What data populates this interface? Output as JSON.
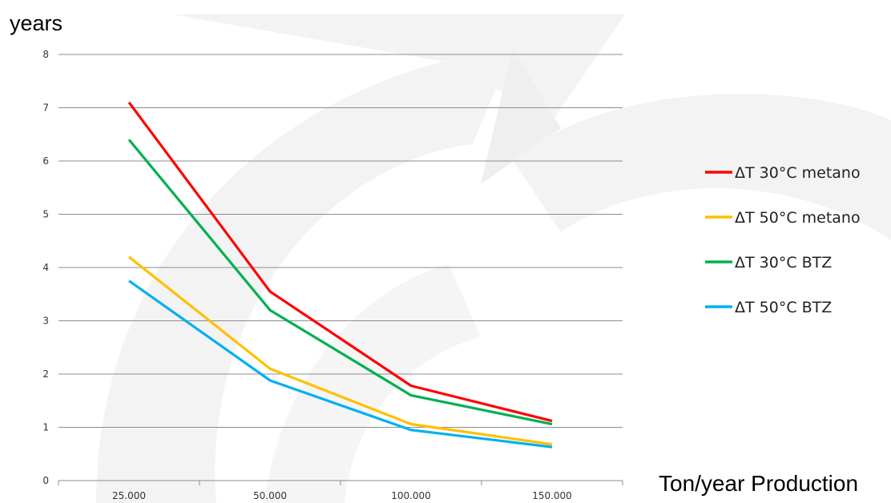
{
  "chart_data": {
    "type": "line",
    "ylabel": "years",
    "xlabel": "Ton/year Production",
    "categories": [
      "25.000",
      "50.000",
      "100.000",
      "150.000"
    ],
    "ylim": [
      0,
      8
    ],
    "yticks": [
      0,
      1,
      2,
      3,
      4,
      5,
      6,
      7,
      8
    ],
    "grid": true,
    "legend_position": "right",
    "series": [
      {
        "name": "ΔT 30°C metano",
        "color": "#ff0000",
        "values": [
          7.1,
          3.55,
          1.78,
          1.12
        ]
      },
      {
        "name": "ΔT 50°C metano",
        "color": "#ffc000",
        "values": [
          4.2,
          2.1,
          1.06,
          0.68
        ]
      },
      {
        "name": "ΔT 30°C BTZ",
        "color": "#00b050",
        "values": [
          6.4,
          3.2,
          1.6,
          1.06
        ]
      },
      {
        "name": "ΔT 50°C BTZ",
        "color": "#00b0f0",
        "values": [
          3.75,
          1.88,
          0.95,
          0.63
        ]
      }
    ]
  }
}
